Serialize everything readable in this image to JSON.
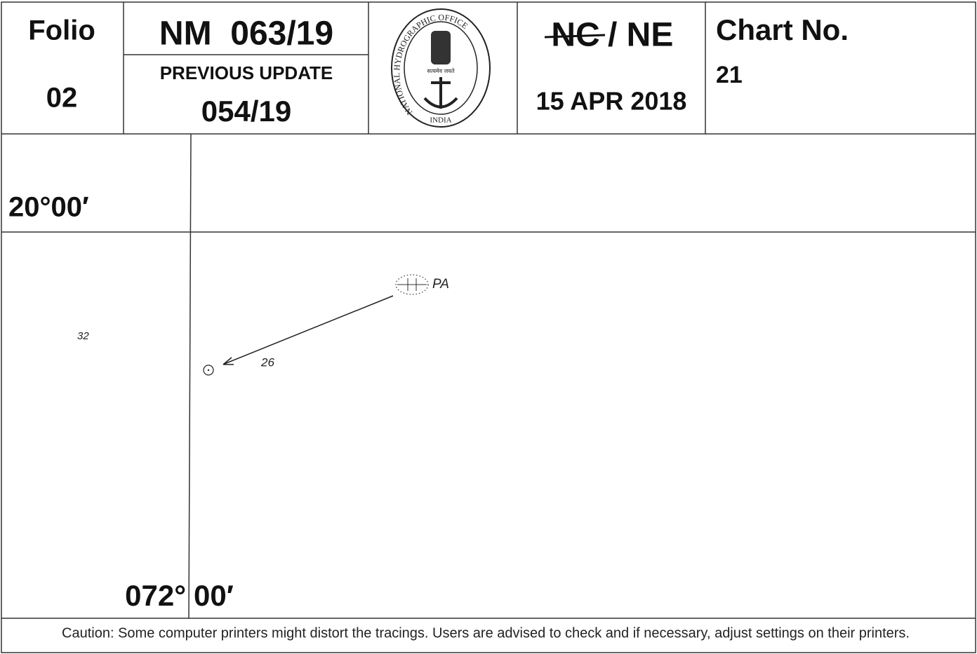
{
  "header": {
    "folio_label": "Folio",
    "folio": "02",
    "nm": "NM  063/19",
    "previous_update_label": "PREVIOUS UPDATE",
    "previous_update": "054/19",
    "logo": {
      "ring_text": "NATIONAL HYDROGRAPHIC OFFICE",
      "bottom_text": "INDIA",
      "motto": "सत्यमेव जयते"
    },
    "nc": "NC",
    "ne": "/ NE",
    "date": "15 APR 2018",
    "chart_no_label": "Chart No.",
    "chart_no": "21"
  },
  "tracing": {
    "latitude": "20°00′",
    "longitude_deg": "072°",
    "longitude_min": "00′",
    "pa_label": "PA",
    "sounding_left": "32",
    "sounding_arrow": "26"
  },
  "footer": {
    "caution": "Caution: Some computer printers might distort the tracings. Users are advised to check and if necessary, adjust settings on their printers."
  }
}
